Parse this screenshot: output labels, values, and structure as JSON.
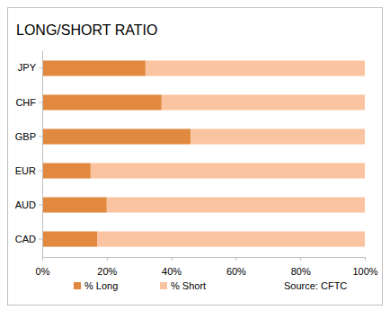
{
  "chart_data": {
    "type": "bar",
    "title": "LONG/SHORT RATIO",
    "orientation": "horizontal",
    "stacked": true,
    "categories": [
      "JPY",
      "CHF",
      "GBP",
      "EUR",
      "AUD",
      "CAD"
    ],
    "series": [
      {
        "name": "% Long",
        "color": "#E0893F",
        "values": [
          32,
          37,
          46,
          15,
          20,
          17
        ]
      },
      {
        "name": "% Short",
        "color": "#FBC4A0",
        "values": [
          68,
          63,
          54,
          85,
          80,
          83
        ]
      }
    ],
    "xlim": [
      0,
      100
    ],
    "xticks": [
      {
        "value": 0,
        "label": "0%"
      },
      {
        "value": 20,
        "label": "20%"
      },
      {
        "value": 40,
        "label": "40%"
      },
      {
        "value": 60,
        "label": "60%"
      },
      {
        "value": 80,
        "label": "80%"
      },
      {
        "value": 100,
        "label": "100%"
      }
    ],
    "grid": false,
    "legend": "bottom",
    "annotations": [
      "Source: CFTC"
    ]
  }
}
